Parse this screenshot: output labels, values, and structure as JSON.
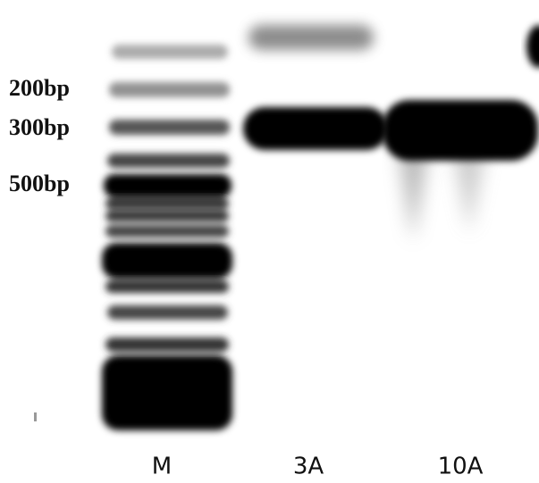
{
  "size_labels": [
    "200bp",
    "300bp",
    "500bp"
  ],
  "lane_labels": [
    "M",
    "3A",
    "10A"
  ]
}
